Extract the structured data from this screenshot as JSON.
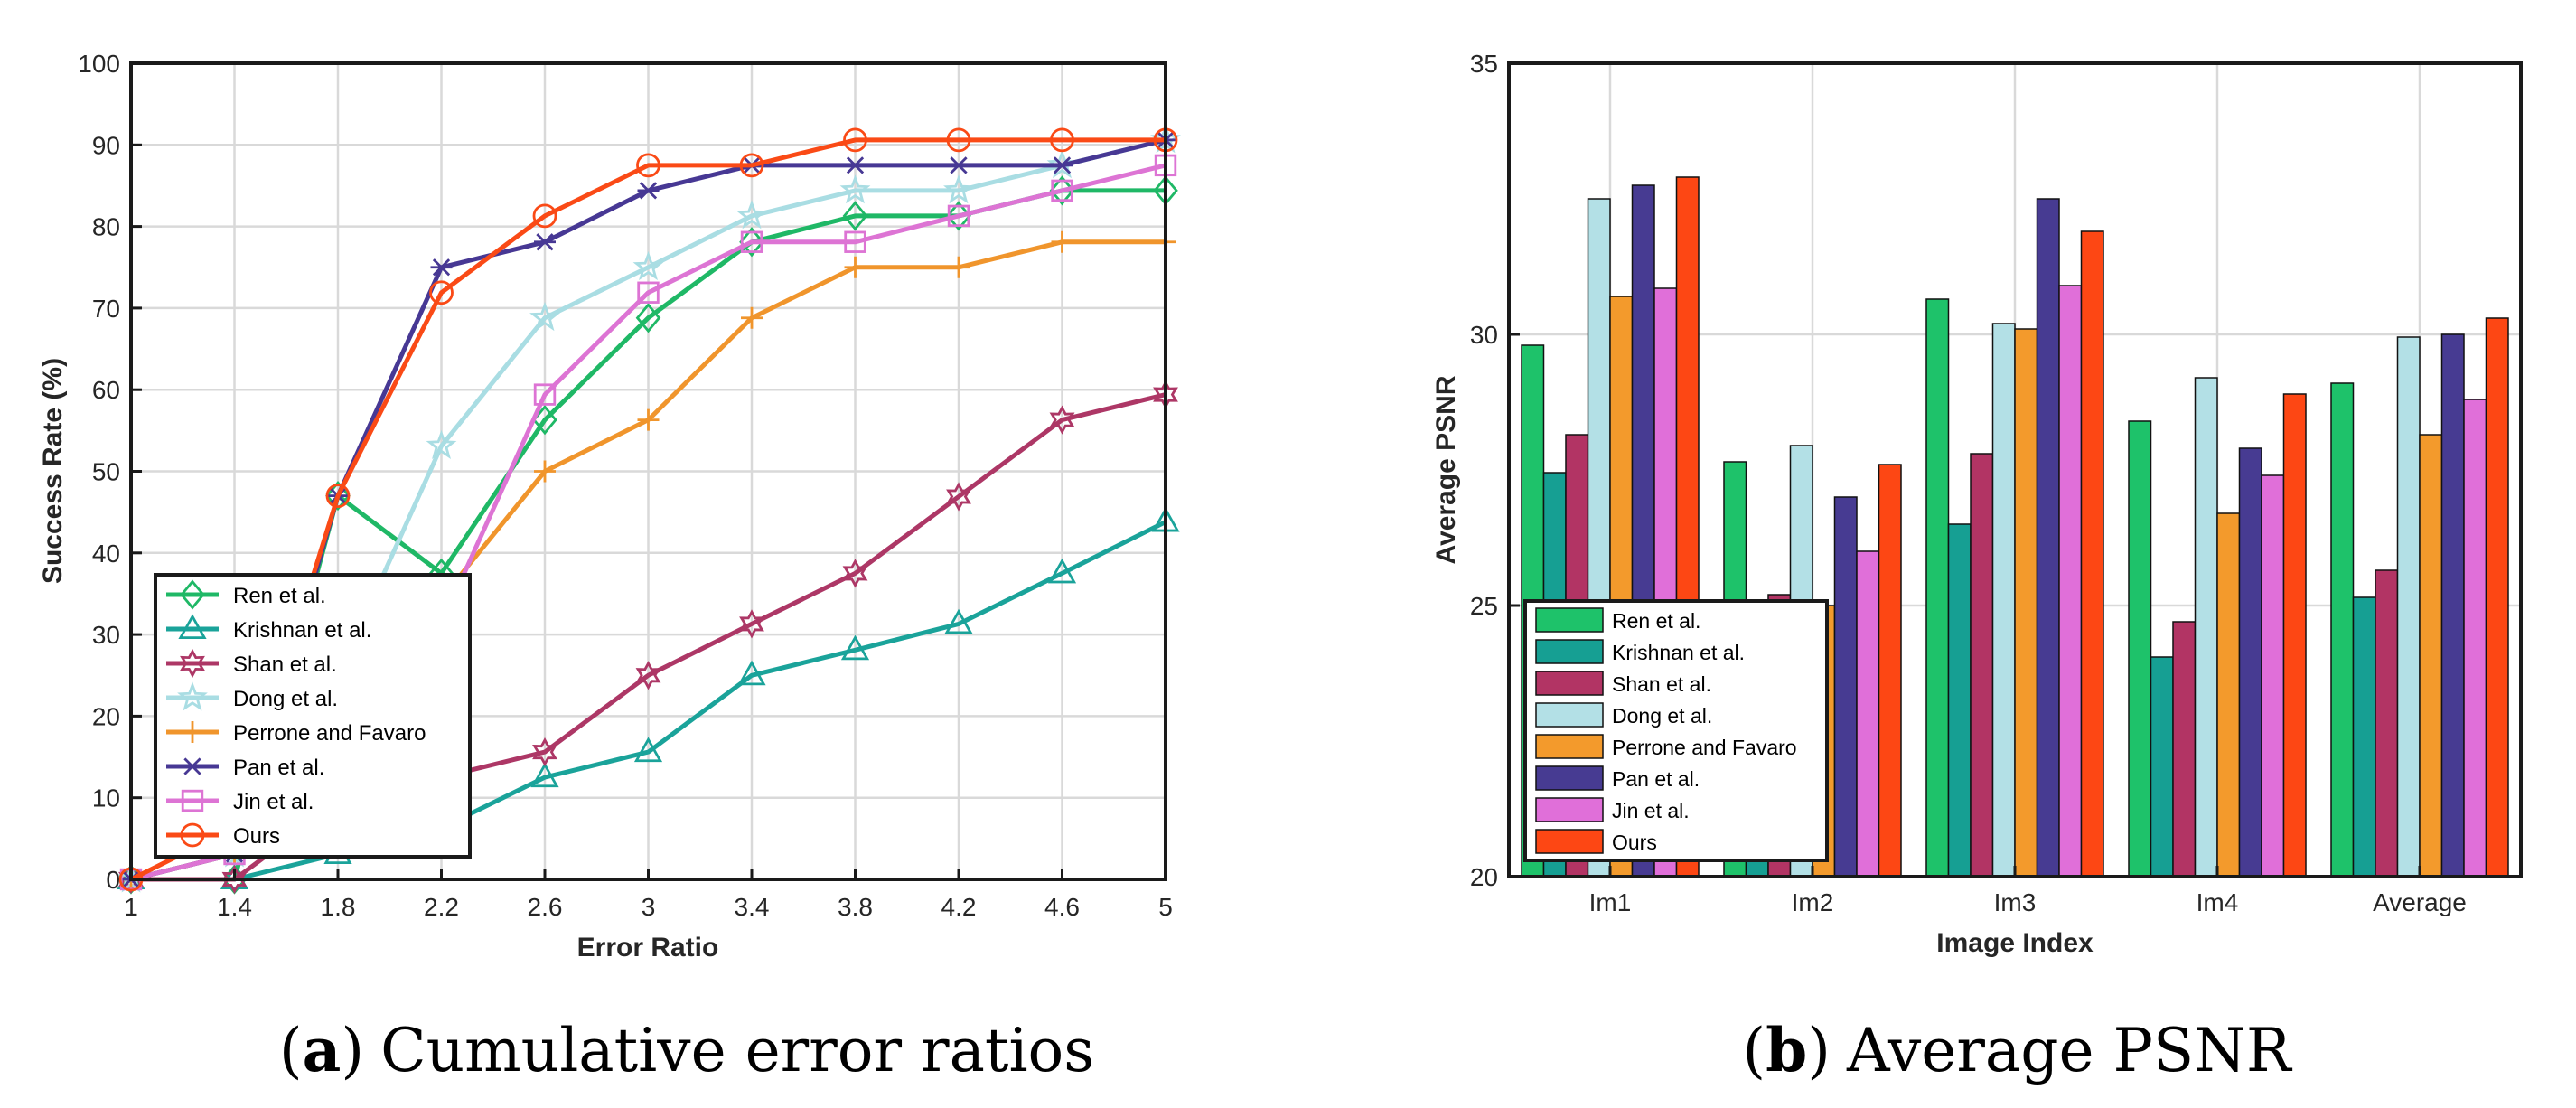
{
  "chart_data": [
    {
      "type": "line",
      "caption_label": "a",
      "caption_text": "Cumulative error ratios",
      "xlabel": "Error Ratio",
      "ylabel": "Success Rate (%)",
      "xlim": [
        1,
        5
      ],
      "ylim": [
        0,
        100
      ],
      "xticks": [
        "1",
        "1.4",
        "1.8",
        "2.2",
        "2.6",
        "3",
        "3.4",
        "3.8",
        "4.2",
        "4.6",
        "5"
      ],
      "yticks": [
        "0",
        "10",
        "20",
        "30",
        "40",
        "50",
        "60",
        "70",
        "80",
        "90",
        "100"
      ],
      "grid": true,
      "legend_position": "bottom-left",
      "x": [
        1,
        1.4,
        1.8,
        2.2,
        2.6,
        3,
        3.4,
        3.8,
        4.2,
        4.6,
        5
      ],
      "series": [
        {
          "name": "Ren et al.",
          "color": "#1fb866",
          "marker": "diamond",
          "values": [
            0,
            0,
            47,
            37.5,
            56.3,
            68.8,
            78.1,
            81.3,
            81.3,
            84.4,
            84.4
          ]
        },
        {
          "name": "Krishnan et al.",
          "color": "#1aa39a",
          "marker": "triangle",
          "values": [
            0,
            0,
            3.1,
            6.3,
            12.5,
            15.6,
            25,
            28.1,
            31.3,
            37.5,
            43.8
          ]
        },
        {
          "name": "Shan et al.",
          "color": "#ad3766",
          "marker": "hexagram",
          "values": [
            0,
            0,
            9.4,
            12.5,
            15.6,
            25,
            31.3,
            37.5,
            46.9,
            56.3,
            59.4
          ]
        },
        {
          "name": "Dong et al.",
          "color": "#a9dde3",
          "marker": "pentagram",
          "values": [
            0,
            3.1,
            25,
            53.1,
            68.8,
            75,
            81.3,
            84.4,
            84.4,
            87.5,
            90.6
          ]
        },
        {
          "name": "Perrone and Favaro",
          "color": "#f0952c",
          "marker": "plus",
          "values": [
            0,
            3.1,
            18.8,
            34.4,
            50,
            56.3,
            68.8,
            75,
            75,
            78.1,
            78.1
          ]
        },
        {
          "name": "Pan et al.",
          "color": "#473894",
          "marker": "asterisk",
          "values": [
            0,
            3.1,
            47,
            75,
            78.1,
            84.4,
            87.5,
            87.5,
            87.5,
            87.5,
            90.6
          ]
        },
        {
          "name": "Jin et al.",
          "color": "#dd74d4",
          "marker": "square",
          "values": [
            0,
            3.1,
            18.8,
            31.3,
            59.4,
            71.9,
            78.1,
            78.1,
            81.3,
            84.4,
            87.5
          ]
        },
        {
          "name": "Ours",
          "color": "#fa4a16",
          "marker": "circle",
          "values": [
            0,
            6.3,
            47,
            71.9,
            81.3,
            87.5,
            87.5,
            90.6,
            90.6,
            90.6,
            90.6
          ]
        }
      ]
    },
    {
      "type": "bar",
      "caption_label": "b",
      "caption_text": "Average PSNR",
      "xlabel": "Image Index",
      "ylabel": "Average PSNR",
      "ylim": [
        20,
        35
      ],
      "yticks": [
        "20",
        "25",
        "30",
        "35"
      ],
      "grid": true,
      "legend_position": "bottom-left",
      "categories": [
        "Im1",
        "Im2",
        "Im3",
        "Im4",
        "Average"
      ],
      "series": [
        {
          "name": "Ren et al.",
          "color": "#1ec26a",
          "values": [
            29.8,
            27.65,
            30.65,
            28.4,
            29.1
          ]
        },
        {
          "name": "Krishnan et al.",
          "color": "#169f93",
          "values": [
            27.45,
            23.8,
            26.5,
            24.05,
            25.15
          ]
        },
        {
          "name": "Shan et al.",
          "color": "#b23464",
          "values": [
            28.15,
            25.2,
            27.8,
            24.7,
            25.65
          ]
        },
        {
          "name": "Dong et al.",
          "color": "#b3e0e6",
          "values": [
            32.5,
            27.95,
            30.2,
            29.2,
            29.95
          ]
        },
        {
          "name": "Perrone and Favaro",
          "color": "#f39a2c",
          "values": [
            30.7,
            25,
            30.1,
            26.7,
            28.15
          ]
        },
        {
          "name": "Pan et al.",
          "color": "#473b92",
          "values": [
            32.75,
            27,
            32.5,
            27.9,
            30
          ]
        },
        {
          "name": "Jin et al.",
          "color": "#e06fd9",
          "values": [
            30.85,
            26,
            30.9,
            27.4,
            28.8
          ]
        },
        {
          "name": "Ours",
          "color": "#fd4714",
          "values": [
            32.9,
            27.6,
            31.9,
            28.9,
            30.3
          ]
        }
      ]
    }
  ]
}
